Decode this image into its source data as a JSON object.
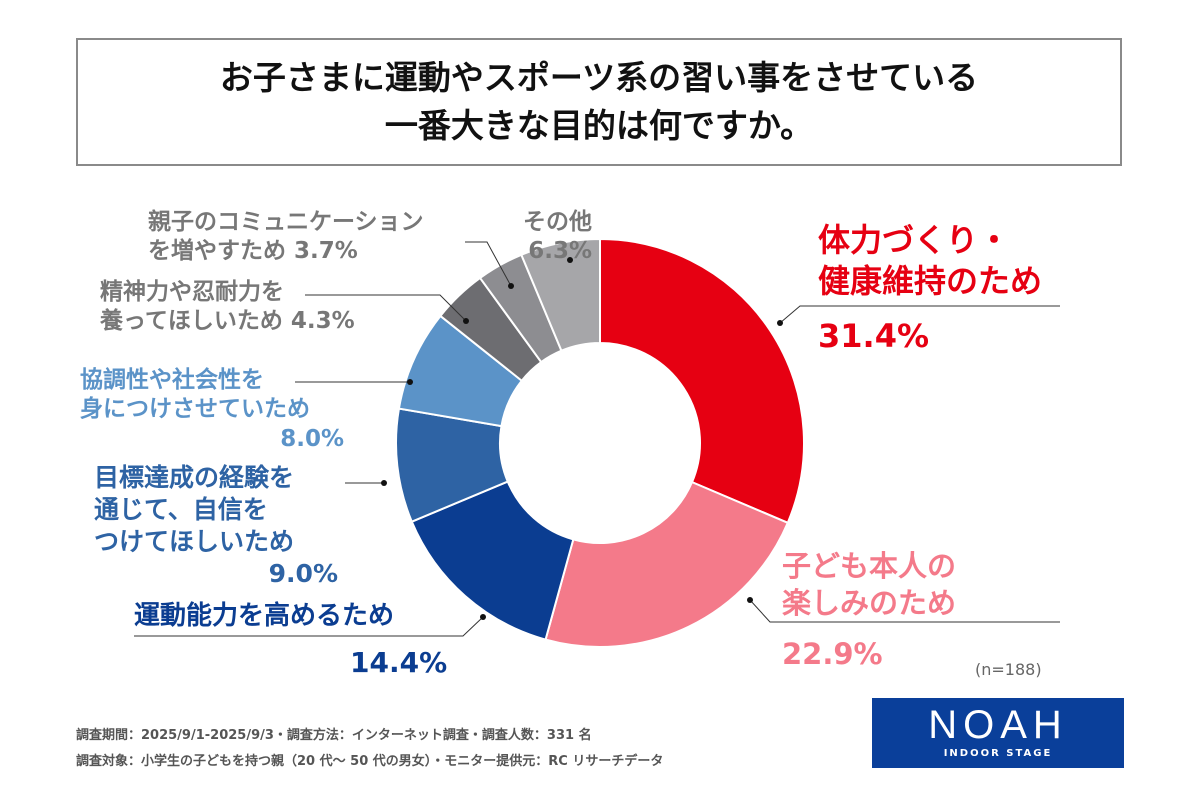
{
  "chart_data": {
    "type": "pie",
    "donut": true,
    "title": [
      "お子さまに運動やスポーツ系の習い事をさせている",
      "一番大きな目的は何ですか。"
    ],
    "slices": [
      {
        "label": "体力づくり・健康維持のため",
        "lines": [
          "体力づくり・",
          "健康維持のため"
        ],
        "value": 31.4,
        "value_label": "31.4%",
        "color": "#e60012"
      },
      {
        "label": "子ども本人の楽しみのため",
        "lines": [
          "子ども本人の",
          "楽しみのため"
        ],
        "value": 22.9,
        "value_label": "22.9%",
        "color": "#f47a8a"
      },
      {
        "label": "運動能力を高めるため",
        "lines": [
          "運動能力を高めるため"
        ],
        "value": 14.4,
        "value_label": "14.4%",
        "color": "#0b3d91"
      },
      {
        "label": "目標達成の経験を通じて、自信をつけてほしいため",
        "lines": [
          "目標達成の経験を",
          "通じて、自信を",
          "つけてほしいため"
        ],
        "value": 9.0,
        "value_label": "9.0%",
        "color": "#2e63a4"
      },
      {
        "label": "協調性や社会性を身につけさせていため",
        "lines": [
          "協調性や社会性を",
          "身につけさせていため"
        ],
        "value": 8.0,
        "value_label": "8.0%",
        "color": "#5b93c8"
      },
      {
        "label": "精神力や忍耐力を養ってほしいため",
        "lines": [
          "精神力や忍耐力を",
          "養ってほしいため"
        ],
        "value": 4.3,
        "value_label": "4.3%",
        "color": "#6d6d71"
      },
      {
        "label": "親子のコミュニケーションを増やすため",
        "lines": [
          "親子のコミュニケーション",
          "を増やすため"
        ],
        "value": 3.7,
        "value_label": "3.7%",
        "color": "#8d8d91"
      },
      {
        "label": "その他",
        "lines": [
          "その他"
        ],
        "value": 6.3,
        "value_label": "6.3%",
        "color": "#a6a6a9"
      }
    ],
    "note": "(n=188)"
  },
  "footer": {
    "line1": "調査期間：2025/9/1-2025/9/3・調査方法：インターネット調査・調査人数：331 名",
    "line2": "調査対象：小学生の子どもを持つ親（20 代～ 50 代の男女）・モニター提供元：RC リサーチデータ"
  },
  "logo": {
    "name": "NOAH",
    "sub": "INDOOR STAGE"
  }
}
